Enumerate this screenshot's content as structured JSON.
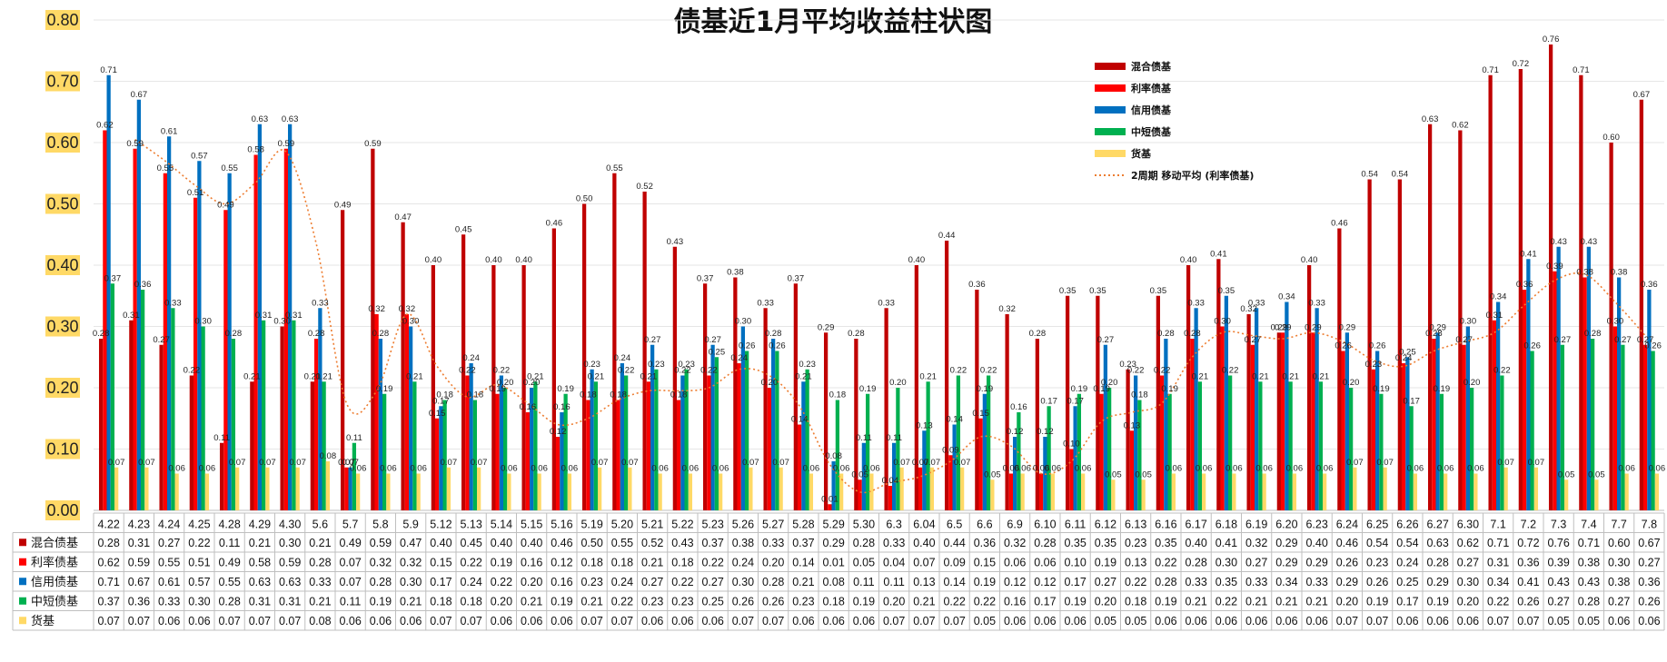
{
  "chart_data": {
    "type": "bar",
    "title": "债基近1月平均收益柱状图",
    "categories": [
      "4.22",
      "4.23",
      "4.24",
      "4.25",
      "4.28",
      "4.29",
      "4.30",
      "5.6",
      "5.7",
      "5.8",
      "5.9",
      "5.12",
      "5.13",
      "5.14",
      "5.15",
      "5.16",
      "5.19",
      "5.20",
      "5.21",
      "5.22",
      "5.23",
      "5.26",
      "5.27",
      "5.28",
      "5.29",
      "5.30",
      "6.3",
      "6.04",
      "6.5",
      "6.6",
      "6.9",
      "6.10",
      "6.11",
      "6.12",
      "6.13",
      "6.16",
      "6.17",
      "6.18",
      "6.19",
      "6.20",
      "6.23",
      "6.24",
      "6.25",
      "6.26",
      "6.27",
      "6.30",
      "7.1",
      "7.2",
      "7.3",
      "7.4",
      "7.7",
      "7.8"
    ],
    "ylim": [
      0,
      0.8
    ],
    "yticks": [
      "0.00",
      "0.10",
      "0.20",
      "0.30",
      "0.40",
      "0.50",
      "0.60",
      "0.70",
      "0.80"
    ],
    "grid": true,
    "legend_position": "top-right",
    "series": [
      {
        "name": "混合债基",
        "color": "#C00000",
        "values": [
          0.28,
          0.31,
          0.27,
          0.22,
          0.11,
          0.21,
          0.3,
          0.21,
          0.49,
          0.59,
          0.47,
          0.4,
          0.45,
          0.4,
          0.4,
          0.46,
          0.5,
          0.55,
          0.52,
          0.43,
          0.37,
          0.38,
          0.33,
          0.37,
          0.29,
          0.28,
          0.33,
          0.4,
          0.44,
          0.36,
          0.32,
          0.28,
          0.35,
          0.35,
          0.23,
          0.35,
          0.4,
          0.41,
          0.32,
          0.29,
          0.4,
          0.46,
          0.54,
          0.54,
          0.63,
          0.62,
          0.71,
          0.72,
          0.76,
          0.71,
          0.6,
          0.67
        ]
      },
      {
        "name": "利率债基",
        "color": "#FF0000",
        "values": [
          0.62,
          0.59,
          0.55,
          0.51,
          0.49,
          0.58,
          0.59,
          0.28,
          0.07,
          0.32,
          0.32,
          0.15,
          0.22,
          0.19,
          0.16,
          0.12,
          0.18,
          0.18,
          0.21,
          0.18,
          0.22,
          0.24,
          0.2,
          0.14,
          0.01,
          0.05,
          0.04,
          0.07,
          0.09,
          0.15,
          0.06,
          0.06,
          0.1,
          0.19,
          0.13,
          0.22,
          0.28,
          0.3,
          0.27,
          0.29,
          0.29,
          0.26,
          0.23,
          0.24,
          0.28,
          0.27,
          0.31,
          0.36,
          0.39,
          0.38,
          0.3,
          0.27
        ]
      },
      {
        "name": "信用债基",
        "color": "#0070C0",
        "values": [
          0.71,
          0.67,
          0.61,
          0.57,
          0.55,
          0.63,
          0.63,
          0.33,
          0.07,
          0.28,
          0.3,
          0.17,
          0.24,
          0.22,
          0.2,
          0.16,
          0.23,
          0.24,
          0.27,
          0.22,
          0.27,
          0.3,
          0.28,
          0.21,
          0.08,
          0.11,
          0.11,
          0.13,
          0.14,
          0.19,
          0.12,
          0.12,
          0.17,
          0.27,
          0.22,
          0.28,
          0.33,
          0.35,
          0.33,
          0.34,
          0.33,
          0.29,
          0.26,
          0.25,
          0.29,
          0.3,
          0.34,
          0.41,
          0.43,
          0.43,
          0.38,
          0.36
        ]
      },
      {
        "name": "中短债基",
        "color": "#00B050",
        "values": [
          0.37,
          0.36,
          0.33,
          0.3,
          0.28,
          0.31,
          0.31,
          0.21,
          0.11,
          0.19,
          0.21,
          0.18,
          0.18,
          0.2,
          0.21,
          0.19,
          0.21,
          0.22,
          0.23,
          0.23,
          0.25,
          0.26,
          0.26,
          0.23,
          0.18,
          0.19,
          0.2,
          0.21,
          0.22,
          0.22,
          0.16,
          0.17,
          0.19,
          0.2,
          0.18,
          0.19,
          0.21,
          0.22,
          0.21,
          0.21,
          0.21,
          0.2,
          0.19,
          0.17,
          0.19,
          0.2,
          0.22,
          0.26,
          0.27,
          0.28,
          0.27,
          0.26
        ]
      },
      {
        "name": "货基",
        "color": "#FFD966",
        "values": [
          0.07,
          0.07,
          0.06,
          0.06,
          0.07,
          0.07,
          0.07,
          0.08,
          0.06,
          0.06,
          0.06,
          0.07,
          0.07,
          0.06,
          0.06,
          0.06,
          0.07,
          0.07,
          0.06,
          0.06,
          0.06,
          0.07,
          0.07,
          0.06,
          0.06,
          0.06,
          0.07,
          0.07,
          0.07,
          0.05,
          0.06,
          0.06,
          0.06,
          0.05,
          0.05,
          0.06,
          0.06,
          0.06,
          0.06,
          0.06,
          0.06,
          0.07,
          0.07,
          0.06,
          0.06,
          0.06,
          0.07,
          0.07,
          0.05,
          0.05,
          0.06,
          0.06
        ]
      }
    ],
    "trendline": {
      "name": "2周期 移动平均 (利率债基)",
      "color": "#ED7D31",
      "style": "dotted",
      "base_series": "利率债基"
    }
  }
}
